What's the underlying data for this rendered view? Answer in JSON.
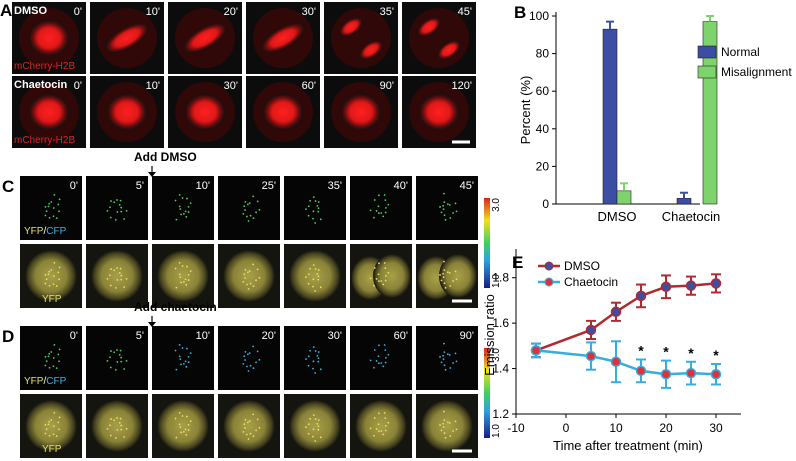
{
  "panels": {
    "A": {
      "label": "A",
      "rows": [
        {
          "condition": "DMSO",
          "times": [
            "0'",
            "10'",
            "20'",
            "30'",
            "35'",
            "45'"
          ],
          "marker": "mCherry-H2B"
        },
        {
          "condition": "Chaetocin",
          "times": [
            "0'",
            "10'",
            "30'",
            "60'",
            "90'",
            "120'"
          ],
          "marker": "mCherry-H2B"
        }
      ]
    },
    "C": {
      "label": "C",
      "treatment": "Add DMSO",
      "times": [
        "0'",
        "5'",
        "10'",
        "25'",
        "35'",
        "40'",
        "45'"
      ],
      "ratio_label": [
        "YFP",
        "/",
        "CFP"
      ],
      "channel": "YFP",
      "colorbar": [
        {
          "value": 3,
          "label": "3.0"
        },
        {
          "value": 1,
          "label": "1.0"
        }
      ]
    },
    "D": {
      "label": "D",
      "treatment": "Add chaetocin",
      "times": [
        "0'",
        "5'",
        "10'",
        "20'",
        "30'",
        "60'",
        "90'"
      ],
      "ratio_label": [
        "YFP",
        "/",
        "CFP"
      ],
      "channel": "YFP",
      "colorbar": [
        {
          "value": 3,
          "label": "3.0"
        },
        {
          "value": 1,
          "label": "1.0"
        }
      ]
    }
  },
  "chart_data": [
    {
      "type": "bar",
      "panel_label": "B",
      "y_label": "Percent (%)",
      "categories": [
        "DMSO",
        "Chaetocin"
      ],
      "series": [
        {
          "name": "Normal",
          "color": "#3b4ea3",
          "values": [
            93,
            3
          ],
          "errors": [
            4,
            3
          ]
        },
        {
          "name": "Misalignment",
          "color": "#7ed36c",
          "values": [
            7,
            97
          ],
          "errors": [
            4,
            3
          ]
        }
      ],
      "ylim": [
        0,
        100
      ],
      "yticks": [
        0,
        20,
        40,
        60,
        80,
        100
      ],
      "legend": "upper right"
    },
    {
      "type": "line",
      "panel_label": "E",
      "x_label": "Time after treatment (min)",
      "y_label": "Emission ratio",
      "x": [
        -6,
        5,
        10,
        15,
        20,
        25,
        30
      ],
      "series": [
        {
          "name": "DMSO",
          "color": "#b02a30",
          "marker_color": "#3f4fa0",
          "values": [
            1.48,
            1.57,
            1.65,
            1.72,
            1.76,
            1.765,
            1.775
          ],
          "errors": [
            0.03,
            0.04,
            0.04,
            0.05,
            0.05,
            0.04,
            0.04
          ]
        },
        {
          "name": "Chaetocin",
          "color": "#35ade0",
          "marker_color": "#e0303a",
          "values": [
            1.48,
            1.455,
            1.43,
            1.39,
            1.375,
            1.38,
            1.375
          ],
          "errors": [
            0.03,
            0.06,
            0.09,
            0.05,
            0.06,
            0.05,
            0.045
          ]
        }
      ],
      "annotations": [
        {
          "x": 15,
          "text": "*"
        },
        {
          "x": 20,
          "text": "*"
        },
        {
          "x": 25,
          "text": "*"
        },
        {
          "x": 30,
          "text": "*"
        }
      ],
      "xlim": [
        -10,
        35
      ],
      "xticks": [
        -10,
        0,
        10,
        20,
        30
      ],
      "ylim": [
        1.2,
        1.9
      ],
      "yticks": [
        1.2,
        1.4,
        1.6,
        1.8
      ],
      "legend": "upper left"
    }
  ]
}
